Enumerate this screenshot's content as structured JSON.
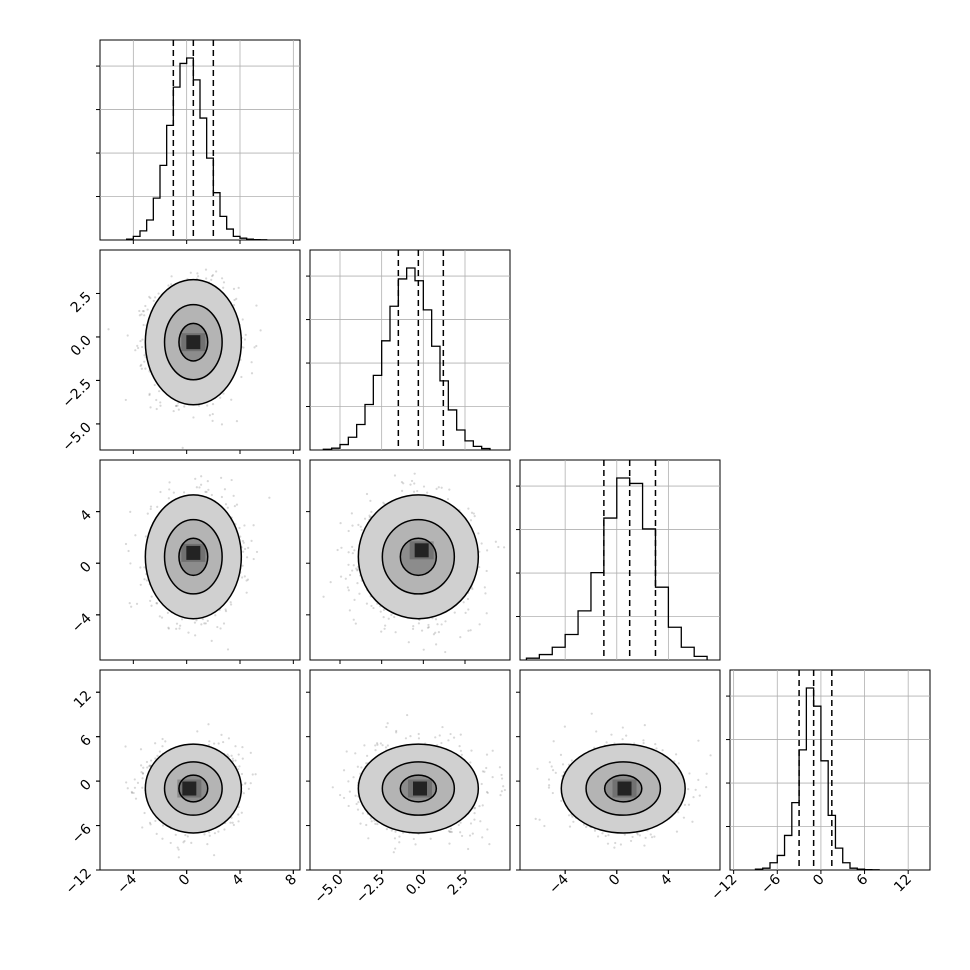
{
  "figure": {
    "kind": "corner-plot"
  },
  "chart_data": {
    "type": "corner",
    "parameters": [
      {
        "hist": {
          "bin_edges": [
            -4.5,
            -4.0,
            -3.5,
            -3.0,
            -2.5,
            -2.0,
            -1.5,
            -1.0,
            -0.5,
            0.0,
            0.5,
            1.0,
            1.5,
            2.0,
            2.5,
            3.0,
            3.5,
            4.0,
            4.5,
            5.0,
            5.5,
            6.0
          ],
          "counts": [
            0.005,
            0.02,
            0.05,
            0.11,
            0.23,
            0.41,
            0.63,
            0.84,
            0.97,
            1.0,
            0.88,
            0.67,
            0.45,
            0.26,
            0.13,
            0.06,
            0.02,
            0.01,
            0.005,
            0.002,
            0.001
          ],
          "quantiles": [
            -1.0,
            0.5,
            2.0
          ]
        },
        "xlim": [
          -6.5,
          8.5
        ],
        "xticks": [
          {
            "v": -4,
            "t": "−4"
          },
          {
            "v": 0,
            "t": "0"
          },
          {
            "v": 4,
            "t": "4"
          },
          {
            "v": 8,
            "t": "8"
          }
        ],
        "ylim": [
          -6.5,
          5.0
        ],
        "yticks": [
          {
            "v": 2.5,
            "t": "2.5"
          },
          {
            "v": 0.0,
            "t": "0.0"
          },
          {
            "v": -2.5,
            "t": "−2.5"
          },
          {
            "v": -5.0,
            "t": "−5.0"
          }
        ]
      },
      {
        "hist": {
          "bin_edges": [
            -6.0,
            -5.5,
            -5.0,
            -4.5,
            -4.0,
            -3.5,
            -3.0,
            -2.5,
            -2.0,
            -1.5,
            -1.0,
            -0.5,
            0.0,
            0.5,
            1.0,
            1.5,
            2.0,
            2.5,
            3.0,
            3.5,
            4.0
          ],
          "counts": [
            0.004,
            0.01,
            0.03,
            0.07,
            0.14,
            0.25,
            0.41,
            0.6,
            0.79,
            0.94,
            1.0,
            0.93,
            0.77,
            0.57,
            0.38,
            0.22,
            0.11,
            0.05,
            0.02,
            0.008
          ],
          "quantiles": [
            -1.5,
            -0.3,
            1.2
          ]
        },
        "xlim": [
          -6.8,
          5.2
        ],
        "xticks": [
          {
            "v": -5.0,
            "t": "−5.0"
          },
          {
            "v": -2.5,
            "t": "−2.5"
          },
          {
            "v": 0.0,
            "t": "0.0"
          },
          {
            "v": 2.5,
            "t": "2.5"
          }
        ],
        "ylim": [
          -7.5,
          8.0
        ],
        "yticks": [
          {
            "v": 4,
            "t": "4"
          },
          {
            "v": 0,
            "t": "0"
          },
          {
            "v": -4,
            "t": "−4"
          }
        ]
      },
      {
        "hist": {
          "bin_edges": [
            -7.0,
            -6.0,
            -5.0,
            -4.0,
            -3.0,
            -2.0,
            -1.0,
            0.0,
            1.0,
            2.0,
            3.0,
            4.0,
            5.0,
            6.0,
            7.0
          ],
          "counts": [
            0.01,
            0.03,
            0.07,
            0.14,
            0.27,
            0.48,
            0.78,
            1.0,
            0.97,
            0.72,
            0.4,
            0.18,
            0.07,
            0.02
          ],
          "quantiles": [
            -1.0,
            1.0,
            3.0
          ]
        },
        "xlim": [
          -7.5,
          8.0
        ],
        "xticks": [
          {
            "v": -4,
            "t": "−4"
          },
          {
            "v": 0,
            "t": "0"
          },
          {
            "v": 4,
            "t": "4"
          }
        ],
        "ylim": [
          -12,
          15
        ],
        "yticks": [
          {
            "v": 12,
            "t": "12"
          },
          {
            "v": 6,
            "t": "6"
          },
          {
            "v": 0,
            "t": "0"
          },
          {
            "v": -6,
            "t": "−6"
          },
          {
            "v": -12,
            "t": "−12"
          }
        ]
      },
      {
        "hist": {
          "bin_edges": [
            -9.0,
            -8.0,
            -7.0,
            -6.0,
            -5.0,
            -4.0,
            -3.0,
            -2.0,
            -1.0,
            0.0,
            1.0,
            2.0,
            3.0,
            4.0,
            5.0,
            6.0,
            7.0,
            8.0
          ],
          "counts": [
            0.005,
            0.01,
            0.04,
            0.08,
            0.19,
            0.37,
            0.66,
            1.0,
            0.9,
            0.6,
            0.3,
            0.12,
            0.04,
            0.01,
            0.005,
            0.002,
            0.001
          ],
          "quantiles": [
            -3.0,
            -1.0,
            1.5
          ]
        },
        "xlim": [
          -12.5,
          15
        ],
        "xticks": [
          {
            "v": -12,
            "t": "−12"
          },
          {
            "v": -6,
            "t": "−6"
          },
          {
            "v": 0,
            "t": "0"
          },
          {
            "v": 6,
            "t": "6"
          },
          {
            "v": 12,
            "t": "12"
          }
        ]
      }
    ],
    "pairs": [
      {
        "row": 1,
        "col": 0,
        "center": [
          0.5,
          -0.3
        ],
        "sigma": [
          1.5,
          1.5
        ],
        "peak_cell": [
          0.5,
          -0.3
        ]
      },
      {
        "row": 2,
        "col": 0,
        "center": [
          0.5,
          0.5
        ],
        "sigma": [
          1.5,
          2.0
        ],
        "peak_cell": [
          0.5,
          0.8
        ]
      },
      {
        "row": 2,
        "col": 1,
        "center": [
          -0.3,
          0.5
        ],
        "sigma": [
          1.5,
          2.0
        ],
        "peak_cell": [
          -0.1,
          1.0
        ]
      },
      {
        "row": 3,
        "col": 0,
        "center": [
          0.5,
          -1.0
        ],
        "sigma": [
          1.5,
          2.5
        ],
        "peak_cell": [
          0.2,
          -1.0
        ]
      },
      {
        "row": 3,
        "col": 1,
        "center": [
          -0.3,
          -1.0
        ],
        "sigma": [
          1.5,
          2.5
        ],
        "peak_cell": [
          -0.2,
          -1.0
        ]
      },
      {
        "row": 3,
        "col": 2,
        "center": [
          0.5,
          -1.0
        ],
        "sigma": [
          2.0,
          2.5
        ],
        "peak_cell": [
          0.6,
          -1.0
        ]
      }
    ],
    "contour_levels_sigma": [
      0.6,
      1.2,
      2.0
    ],
    "grid": true,
    "colors": {
      "hist_line": "#000000",
      "quantile_line": "#000000",
      "scatter_point": "#7a7a7a",
      "density_dark": "#000000",
      "density_mid": "#8c8c8c",
      "density_light": "#d0d0d0",
      "grid": "#b0b0b0"
    }
  }
}
